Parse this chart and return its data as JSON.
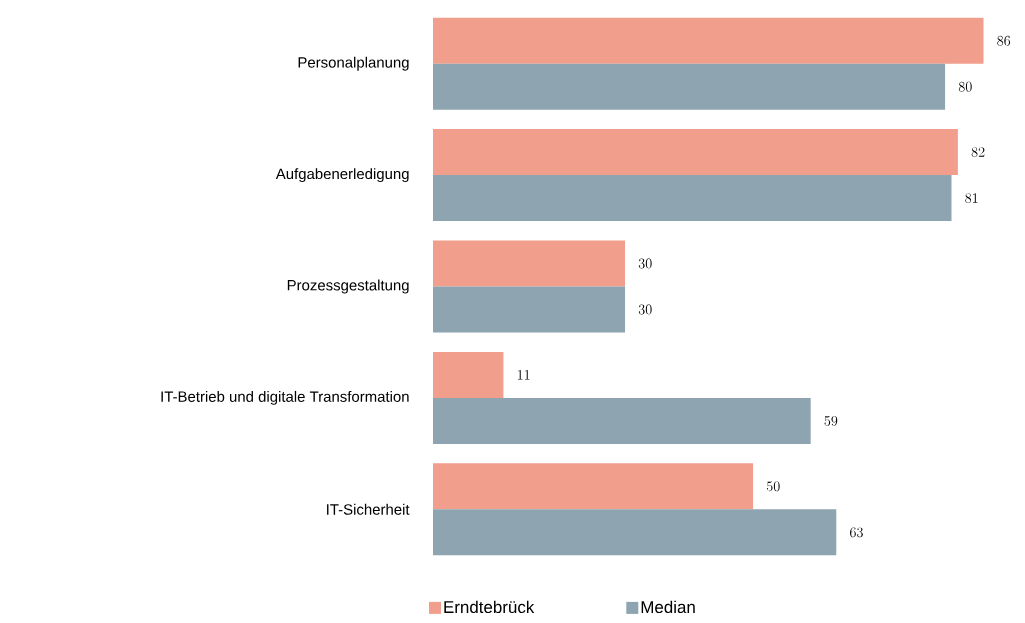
{
  "chart_data": {
    "type": "bar",
    "orientation": "horizontal",
    "categories": [
      "Personalplanung",
      "Aufgabenerledigung",
      "Prozessgestaltung",
      "IT-Betrieb und digitale Transformation",
      "IT-Sicherheit"
    ],
    "series": [
      {
        "name": "Erndtebrück",
        "color": "#f19e8c",
        "values": [
          86,
          82,
          30,
          11,
          50
        ]
      },
      {
        "name": "Median",
        "color": "#8ea4b0",
        "values": [
          80,
          81,
          30,
          59,
          63
        ]
      }
    ],
    "data_labels": true,
    "legend": "bottom"
  }
}
